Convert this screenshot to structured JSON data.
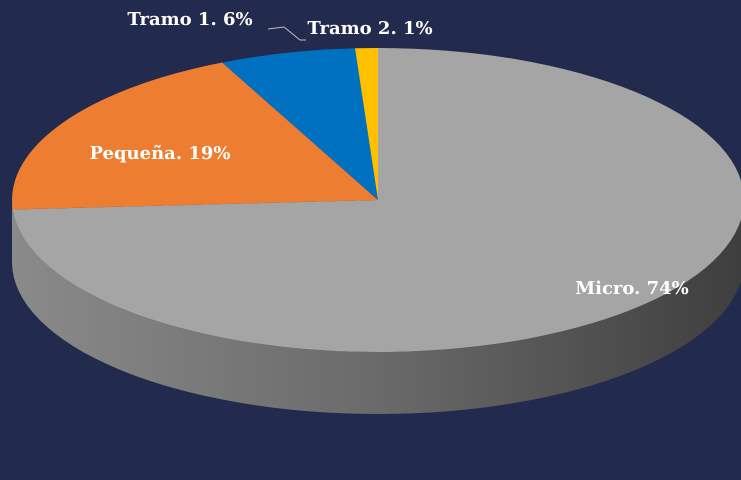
{
  "chart_data": {
    "type": "pie",
    "values": [
      74,
      19,
      6,
      1
    ],
    "value_labels": [
      "Micro. 74%",
      "Pequeña. 19%",
      "Tramo 1. 6%",
      "Tramo 2. 1%"
    ],
    "colors": [
      "#a5a5a5",
      "#ed7d31",
      "#0070c0",
      "#ffc000"
    ]
  }
}
